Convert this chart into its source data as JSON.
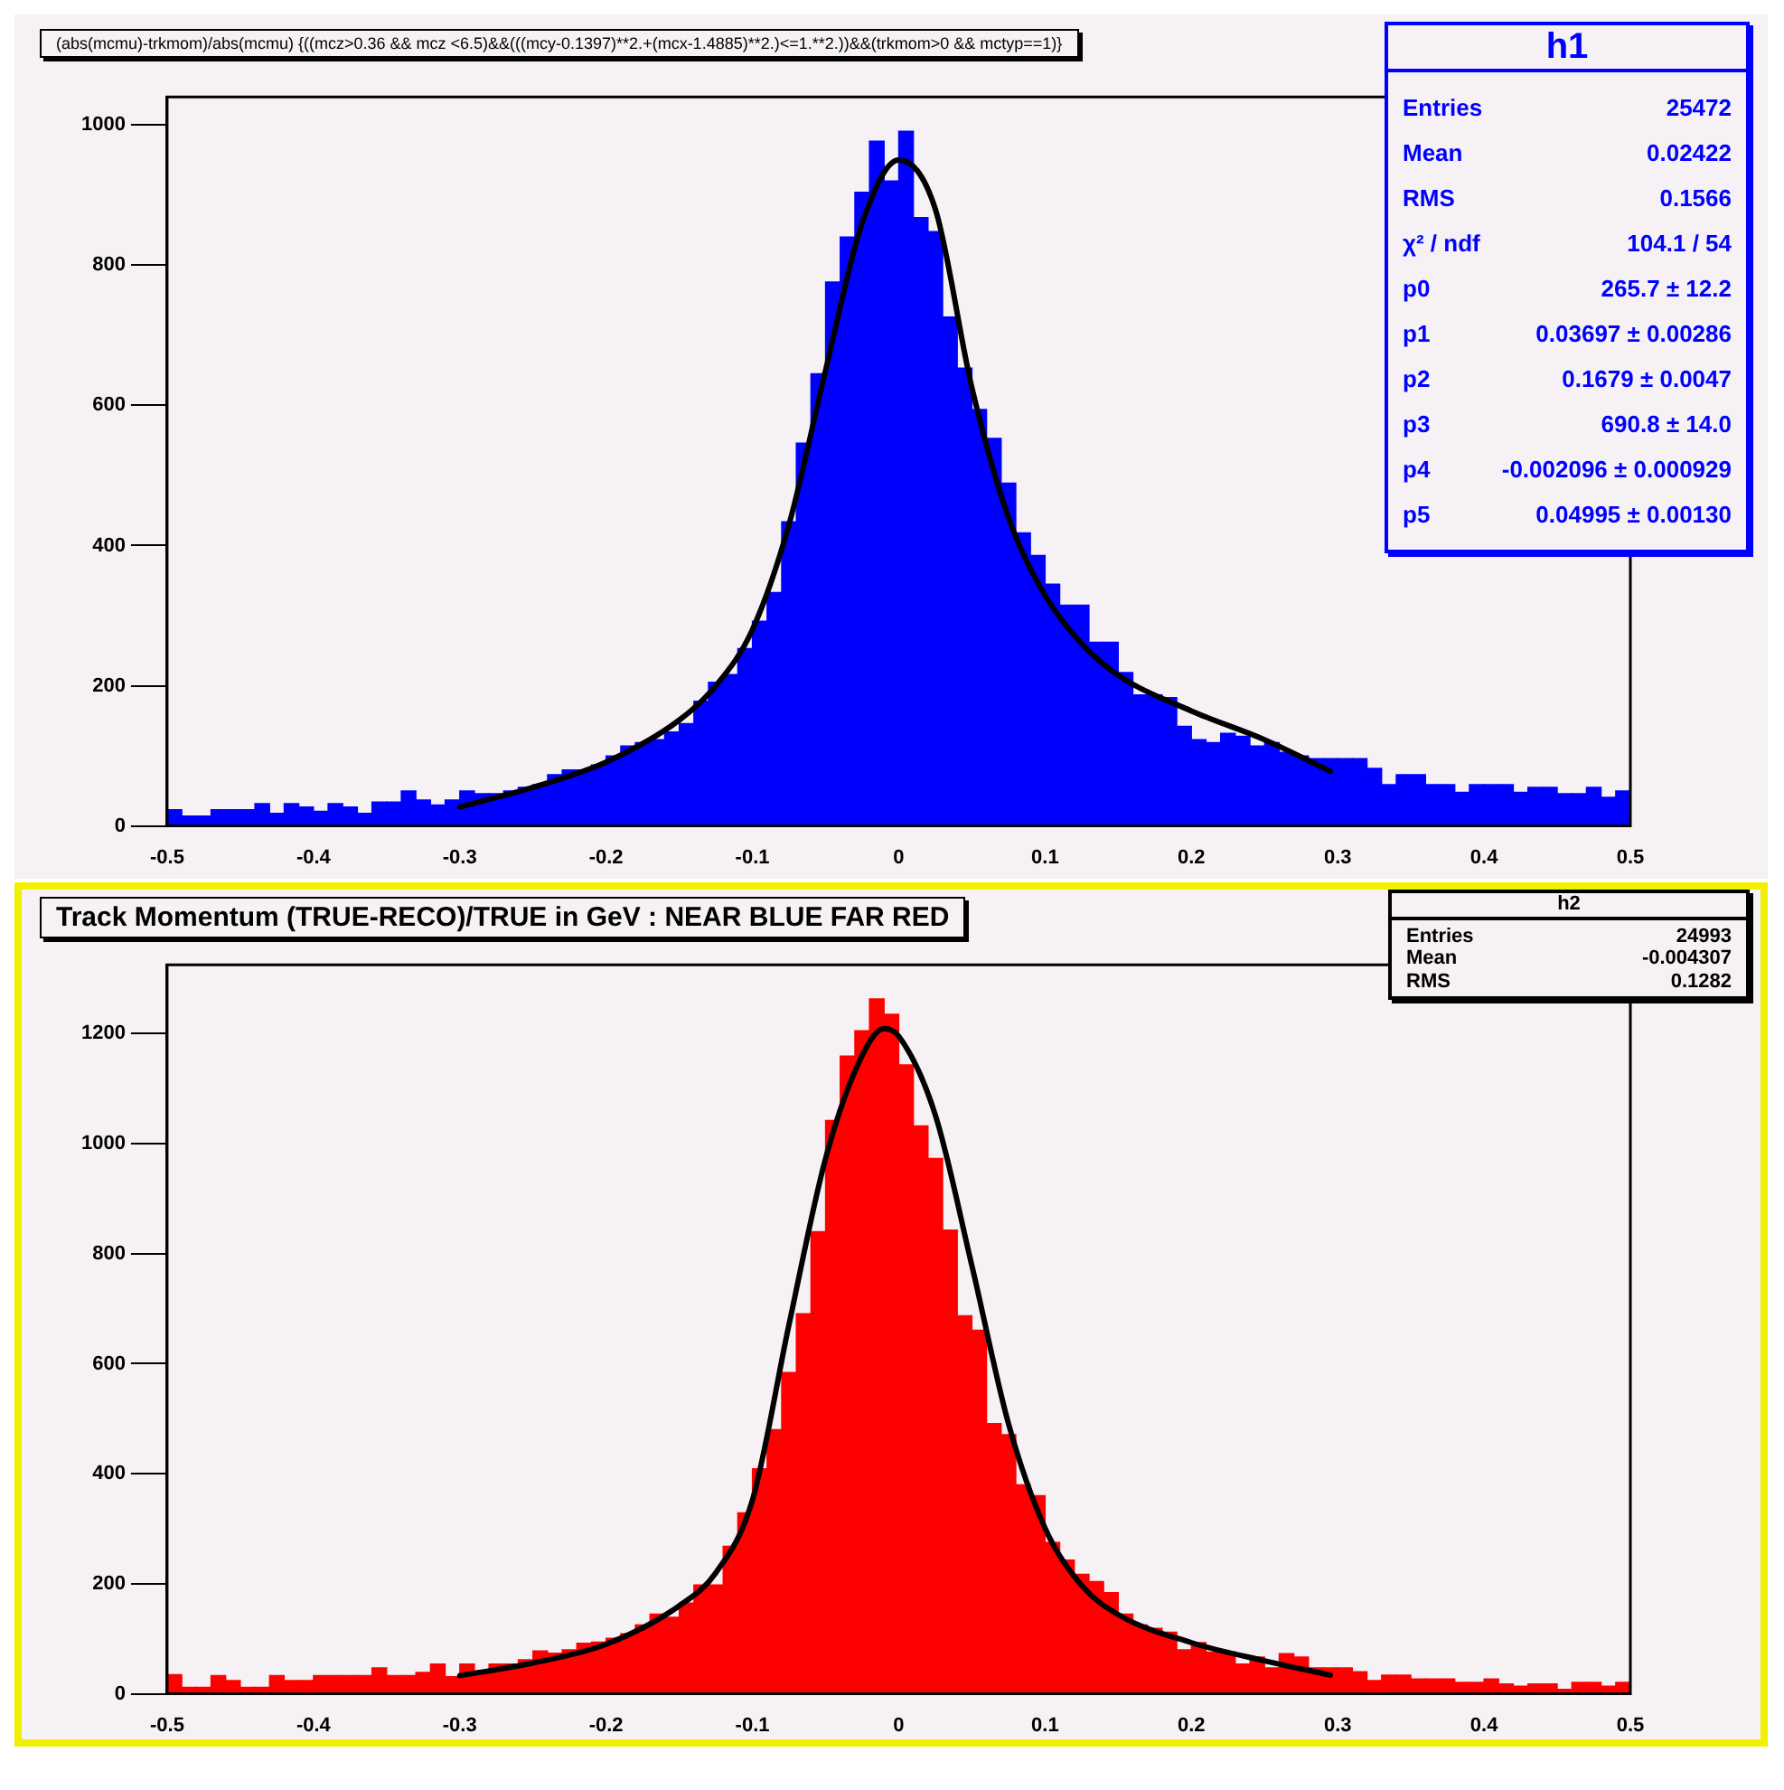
{
  "chart_data": [
    {
      "type": "histogram",
      "title": "(abs(mcmu)-trkmom)/abs(mcmu) {((mcz>0.36 && mcz <6.5)&&(((mcy-0.1397)**2.+(mcx-1.4885)**2.)<=1.**2.))&&(trkmom>0  && mctyp==1)}",
      "annotations": [
        "h1",
        "Entries",
        "25472",
        "Mean",
        "0.02422",
        "RMS",
        "0.1566",
        "χ² / ndf",
        "104.1 / 54",
        "p0",
        "265.7 ± 12.2",
        "p1",
        "0.03697 ± 0.00286",
        "p2",
        "0.1679 ± 0.0047",
        "p3",
        "690.8 ± 14.0",
        "p4",
        "-0.002096 ± 0.000929",
        "p5",
        "0.04995 ± 0.00130"
      ],
      "bins": [
        -0.5,
        -0.49,
        -0.48,
        -0.47,
        -0.46,
        -0.45,
        -0.44,
        -0.43,
        -0.42,
        -0.41,
        -0.4,
        -0.39,
        -0.38,
        -0.37,
        -0.36,
        -0.35,
        -0.34,
        -0.33,
        -0.32,
        -0.31,
        -0.3,
        -0.29,
        -0.28,
        -0.27,
        -0.26,
        -0.25,
        -0.24,
        -0.23,
        -0.22,
        -0.21,
        -0.2,
        -0.19,
        -0.18,
        -0.17,
        -0.16,
        -0.15,
        -0.14,
        -0.13,
        -0.12,
        -0.11,
        -0.1,
        -0.09,
        -0.08,
        -0.07,
        -0.06,
        -0.05,
        -0.04,
        -0.03,
        -0.02,
        -0.01,
        0,
        0.01,
        0.02,
        0.03,
        0.04,
        0.05,
        0.06,
        0.07,
        0.08,
        0.09,
        0.1,
        0.11,
        0.12,
        0.13,
        0.14,
        0.15,
        0.16,
        0.17,
        0.18,
        0.19,
        0.2,
        0.21,
        0.22,
        0.23,
        0.24,
        0.25,
        0.26,
        0.27,
        0.28,
        0.29,
        0.3,
        0.31,
        0.32,
        0.33,
        0.34,
        0.35,
        0.36,
        0.37,
        0.38,
        0.39,
        0.4,
        0.41,
        0.42,
        0.43,
        0.44,
        0.45,
        0.46,
        0.47,
        0.48,
        0.49,
        0.5
      ],
      "series": [
        {
          "type": "histogram",
          "color": "#0000ff",
          "values": [
            23,
            14,
            14,
            23,
            23,
            23,
            32,
            18,
            32,
            27,
            21,
            32,
            27,
            18,
            34,
            34,
            50,
            37,
            30,
            37,
            50,
            46,
            46,
            50,
            55,
            59,
            73,
            80,
            80,
            87,
            100,
            114,
            119,
            123,
            134,
            146,
            178,
            205,
            216,
            253,
            292,
            333,
            434,
            546,
            645,
            776,
            840,
            904,
            977,
            920,
            991,
            868,
            848,
            726,
            653,
            594,
            553,
            489,
            418,
            386,
            345,
            315,
            315,
            262,
            262,
            219,
            187,
            187,
            183,
            142,
            123,
            119,
            132,
            128,
            114,
            119,
            105,
            100,
            96,
            96,
            96,
            96,
            82,
            59,
            73,
            73,
            59,
            59,
            48,
            59,
            59,
            59,
            48,
            55,
            55,
            46,
            46,
            55,
            41,
            50
          ]
        },
        {
          "type": "line",
          "color": "#000000",
          "x": [
            -0.3,
            -0.25,
            -0.2,
            -0.15,
            -0.125,
            -0.1,
            -0.075,
            -0.05,
            -0.025,
            0,
            0.025,
            0.05,
            0.075,
            0.1,
            0.125,
            0.15,
            0.2,
            0.25,
            0.295
          ],
          "values": [
            27,
            55,
            91,
            151,
            200,
            280,
            430,
            650,
            860,
            950,
            880,
            625,
            440,
            329,
            260,
            215,
            164,
            123,
            78
          ]
        }
      ],
      "xlim": [
        -0.5,
        0.5
      ],
      "xticks": [
        -0.5,
        -0.4,
        -0.3,
        -0.2,
        -0.1,
        0,
        0.1,
        0.2,
        0.3,
        0.4,
        0.5
      ],
      "ylim": [
        0,
        1040
      ],
      "yticks": [
        0,
        200,
        400,
        600,
        800,
        1000
      ],
      "grid": false,
      "legend": false
    },
    {
      "type": "histogram",
      "title": "Track Momentum (TRUE-RECO)/TRUE in GeV : NEAR BLUE FAR RED",
      "annotations": [
        "h2",
        "Entries",
        "24993",
        "Mean",
        "-0.004307",
        "RMS",
        "0.1282"
      ],
      "bins": [
        -0.5,
        -0.49,
        -0.48,
        -0.47,
        -0.46,
        -0.45,
        -0.44,
        -0.43,
        -0.42,
        -0.41,
        -0.4,
        -0.39,
        -0.38,
        -0.37,
        -0.36,
        -0.35,
        -0.34,
        -0.33,
        -0.32,
        -0.31,
        -0.3,
        -0.29,
        -0.28,
        -0.27,
        -0.26,
        -0.25,
        -0.24,
        -0.23,
        -0.22,
        -0.21,
        -0.2,
        -0.19,
        -0.18,
        -0.17,
        -0.16,
        -0.15,
        -0.14,
        -0.13,
        -0.12,
        -0.11,
        -0.1,
        -0.09,
        -0.08,
        -0.07,
        -0.06,
        -0.05,
        -0.04,
        -0.03,
        -0.02,
        -0.01,
        0,
        0.01,
        0.02,
        0.03,
        0.04,
        0.05,
        0.06,
        0.07,
        0.08,
        0.09,
        0.1,
        0.11,
        0.12,
        0.13,
        0.14,
        0.15,
        0.16,
        0.17,
        0.18,
        0.19,
        0.2,
        0.21,
        0.22,
        0.23,
        0.24,
        0.25,
        0.26,
        0.27,
        0.28,
        0.29,
        0.3,
        0.31,
        0.32,
        0.33,
        0.34,
        0.35,
        0.36,
        0.37,
        0.38,
        0.39,
        0.4,
        0.41,
        0.42,
        0.43,
        0.44,
        0.45,
        0.46,
        0.47,
        0.48,
        0.49,
        0.5
      ],
      "series": [
        {
          "type": "histogram",
          "color": "#ff0000",
          "values": [
            35,
            12,
            12,
            33,
            24,
            12,
            12,
            33,
            24,
            24,
            33,
            33,
            33,
            33,
            47,
            33,
            33,
            39,
            54,
            31,
            54,
            40,
            54,
            54,
            62,
            78,
            74,
            80,
            92,
            94,
            101,
            109,
            125,
            145,
            139,
            165,
            198,
            198,
            268,
            329,
            409,
            480,
            584,
            691,
            840,
            1042,
            1159,
            1205,
            1263,
            1235,
            1143,
            1032,
            973,
            843,
            687,
            661,
            491,
            471,
            380,
            360,
            275,
            243,
            217,
            204,
            184,
            145,
            125,
            119,
            112,
            80,
            93,
            76,
            76,
            54,
            67,
            47,
            73,
            67,
            47,
            47,
            47,
            40,
            24,
            34,
            34,
            27,
            27,
            27,
            21,
            21,
            27,
            18,
            14,
            18,
            18,
            8,
            21,
            21,
            14,
            21
          ]
        },
        {
          "type": "line",
          "color": "#000000",
          "x": [
            -0.3,
            -0.25,
            -0.2,
            -0.15,
            -0.125,
            -0.1,
            -0.075,
            -0.05,
            -0.025,
            -0.01,
            0,
            0.025,
            0.05,
            0.075,
            0.1,
            0.125,
            0.15,
            0.2,
            0.25,
            0.295
          ],
          "values": [
            33,
            56,
            90,
            160,
            220,
            352,
            671,
            973,
            1160,
            1209,
            1195,
            1052,
            778,
            491,
            301,
            197,
            144,
            93,
            60,
            34
          ]
        }
      ],
      "xlim": [
        -0.5,
        0.5
      ],
      "xticks": [
        -0.5,
        -0.4,
        -0.3,
        -0.2,
        -0.1,
        0,
        0.1,
        0.2,
        0.3,
        0.4,
        0.5
      ],
      "ylim": [
        0,
        1325
      ],
      "yticks": [
        0,
        200,
        400,
        600,
        800,
        1000,
        1200
      ],
      "grid": false,
      "legend": false
    }
  ]
}
